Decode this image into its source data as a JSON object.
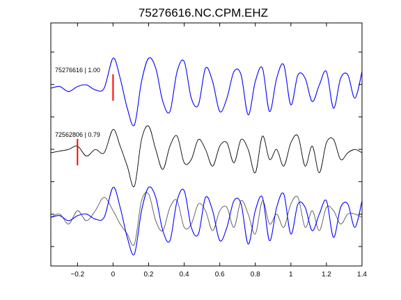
{
  "chart_data": {
    "type": "line",
    "title": "75276616.NC.CPM.EHZ",
    "xlabel": "",
    "ylabel": "",
    "xlim": [
      -0.35,
      1.4
    ],
    "x_ticks": [
      -0.2,
      0,
      0.2,
      0.4,
      0.6,
      0.8,
      1,
      1.2,
      1.4
    ],
    "x_tick_labels": [
      "−0.2",
      "0",
      "0.2",
      "0.4",
      "0.6",
      "0.8",
      "1",
      "1.2",
      "1.4"
    ],
    "grid": false,
    "legend": "none",
    "x": [
      -0.35,
      -0.3,
      -0.25,
      -0.2,
      -0.15,
      -0.1,
      -0.05,
      0.0,
      0.04,
      0.08,
      0.12,
      0.16,
      0.2,
      0.24,
      0.28,
      0.32,
      0.36,
      0.4,
      0.44,
      0.48,
      0.52,
      0.56,
      0.6,
      0.64,
      0.68,
      0.72,
      0.76,
      0.8,
      0.84,
      0.88,
      0.92,
      0.96,
      1.0,
      1.04,
      1.08,
      1.12,
      1.16,
      1.2,
      1.24,
      1.28,
      1.32,
      1.36,
      1.4
    ],
    "traces": [
      {
        "label": "75276616 | 1.00",
        "color": "#0000ff",
        "pick_time": 0.0,
        "pick_color": "#ff0000",
        "offset": 0,
        "values": [
          0.0,
          0.05,
          -0.1,
          0.05,
          0.1,
          -0.05,
          0.0,
          0.9,
          0.3,
          -0.6,
          -1.1,
          0.2,
          0.9,
          0.6,
          -0.4,
          -0.7,
          0.5,
          0.8,
          -0.3,
          -0.5,
          0.6,
          0.2,
          -0.7,
          -0.3,
          0.5,
          0.4,
          -0.8,
          0.2,
          0.6,
          -0.7,
          0.3,
          0.7,
          -0.5,
          0.4,
          0.3,
          -0.4,
          0.1,
          0.5,
          -0.6,
          0.3,
          0.4,
          -0.3,
          0.5
        ]
      },
      {
        "label": "72562806 | 0.79",
        "color": "#000000",
        "pick_time": -0.2,
        "pick_color": "#ff0000",
        "offset": 1,
        "values": [
          0.0,
          0.05,
          0.1,
          0.2,
          -0.1,
          0.1,
          0.0,
          0.7,
          0.2,
          -0.4,
          -1.0,
          0.4,
          0.8,
          0.1,
          -0.5,
          0.2,
          0.5,
          -0.3,
          -0.2,
          0.4,
          0.1,
          -0.4,
          0.2,
          0.3,
          -0.3,
          0.4,
          0.1,
          -0.6,
          0.5,
          -0.2,
          0.1,
          -0.4,
          0.3,
          0.5,
          -0.4,
          0.2,
          -0.6,
          0.3,
          0.4,
          -0.2,
          0.0,
          0.1,
          0.0
        ]
      },
      {
        "label": "",
        "color": "#0000ff",
        "pick_time": null,
        "offset": 2,
        "overlay": true,
        "values": [
          0.0,
          0.05,
          -0.1,
          0.05,
          0.1,
          -0.05,
          0.0,
          0.9,
          0.3,
          -0.6,
          -1.1,
          0.2,
          0.9,
          0.6,
          -0.4,
          -0.7,
          0.5,
          0.8,
          -0.3,
          -0.5,
          0.6,
          0.2,
          -0.7,
          -0.3,
          0.5,
          0.4,
          -0.8,
          0.2,
          0.6,
          -0.7,
          0.3,
          0.7,
          -0.5,
          0.4,
          0.3,
          -0.4,
          0.1,
          0.5,
          -0.6,
          0.3,
          0.4,
          -0.3,
          0.5
        ]
      },
      {
        "label": "",
        "color": "#555555",
        "pick_time": null,
        "offset": 2,
        "overlay": true,
        "values": [
          0.0,
          0.1,
          -0.2,
          0.2,
          -0.1,
          0.2,
          0.6,
          0.2,
          -0.2,
          -0.5,
          -0.8,
          0.5,
          0.7,
          -0.1,
          -0.4,
          0.3,
          0.5,
          -0.3,
          -0.2,
          0.4,
          0.2,
          -0.4,
          0.2,
          0.3,
          -0.3,
          0.5,
          0.1,
          -0.5,
          0.5,
          -0.2,
          0.1,
          -0.3,
          0.4,
          0.6,
          -0.3,
          0.2,
          -0.4,
          0.3,
          0.2,
          -0.2,
          0.1,
          0.1,
          0.0
        ]
      }
    ]
  }
}
